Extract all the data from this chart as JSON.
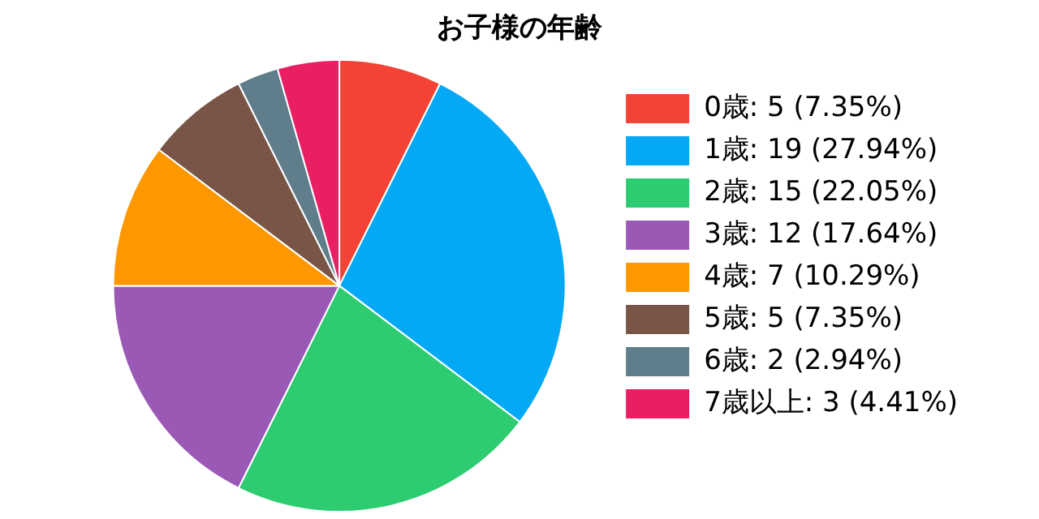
{
  "chart_data": {
    "type": "pie",
    "title": "お子様の年齢",
    "categories": [
      "0歳: 5 (7.35%)",
      "1歳: 19 (27.94%)",
      "2歳: 15 (22.05%)",
      "3歳: 12 (17.64%)",
      "4歳: 7 (10.29%)",
      "5歳: 5 (7.35%)",
      "6歳: 2 (2.94%)",
      "7歳以上: 3 (4.41%)"
    ],
    "values": [
      5,
      19,
      15,
      12,
      7,
      5,
      2,
      3
    ],
    "colors": [
      "#f44336",
      "#03a9f4",
      "#2ecc71",
      "#9b59b6",
      "#ff9800",
      "#795548",
      "#607d8b",
      "#e91e63"
    ],
    "legend": "right"
  }
}
